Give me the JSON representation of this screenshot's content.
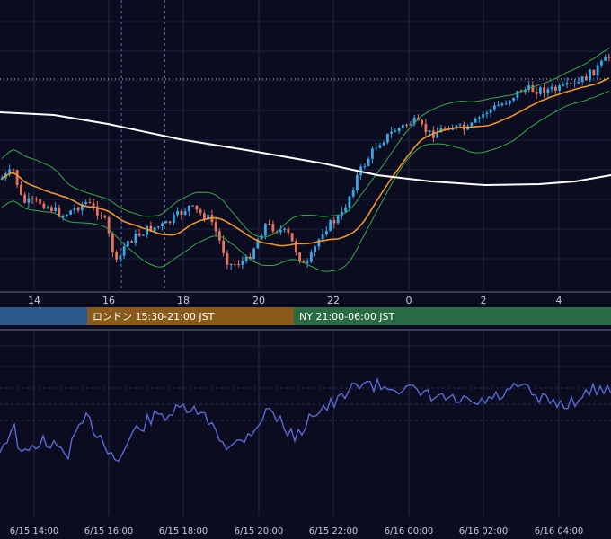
{
  "chart_data": [
    {
      "type": "candlestick",
      "panel": "price",
      "x_ticks": [
        "14",
        "16",
        "18",
        "20",
        "22",
        "0",
        "2",
        "4"
      ],
      "series": [
        {
          "name": "",
          "kind": "candles",
          "count": 160
        },
        {
          "name": "",
          "kind": "moving-average-fast",
          "color": "#f0962a"
        },
        {
          "name": "",
          "kind": "moving-average-slow",
          "color": "#ffffff"
        },
        {
          "name": "",
          "kind": "bollinger-bands",
          "color": "#3aa84a"
        }
      ],
      "colors": {
        "up": "#3aa6e6",
        "down": "#e8735a"
      },
      "grid": true,
      "reference_line": "dotted-white"
    },
    {
      "type": "table",
      "panel": "sessions",
      "sessions": [
        {
          "label": "",
          "color": "#2a5a8a"
        },
        {
          "label": "ロンドン 15:30-21:00 JST",
          "color": "#8a5a1a"
        },
        {
          "label": "NY 21:00-06:00 JST",
          "color": "#2a6a44"
        }
      ]
    },
    {
      "type": "line",
      "panel": "oscillator",
      "series": [
        {
          "name": "",
          "color": "#5a6ad8"
        }
      ],
      "x_ticks": [
        "6/15 14:00",
        "6/15 16:00",
        "6/15 18:00",
        "6/15 20:00",
        "6/15 22:00",
        "6/16 00:00",
        "6/16 02:00",
        "6/16 04:00"
      ],
      "grid": true
    }
  ]
}
